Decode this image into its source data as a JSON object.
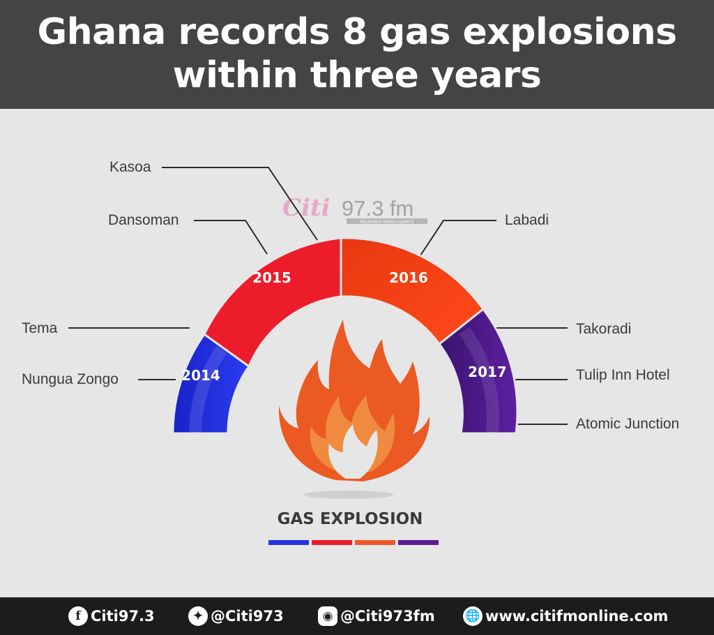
{
  "header": {
    "title_line1": "Ghana records 8 gas explosions",
    "title_line2": "within three years"
  },
  "watermark": {
    "brand": "Citi",
    "station": "97.3 fm",
    "tagline": "RELEVANT RADIO ALWAYS"
  },
  "segments": [
    {
      "year": "2014",
      "color": "#2633e0",
      "locations": [
        "Tema",
        "Nungua Zongo"
      ]
    },
    {
      "year": "2015",
      "color": "#ec1c2b",
      "locations": [
        "Kasoa",
        "Dansoman"
      ]
    },
    {
      "year": "2016",
      "color": "#fa4416",
      "locations": [
        "Labadi"
      ]
    },
    {
      "year": "2017",
      "color": "#4b1d87",
      "locations": [
        "Takoradi",
        "Tulip Inn Hotel",
        "Atomic Junction"
      ]
    }
  ],
  "labels": {
    "kasoa": "Kasoa",
    "dansoman": "Dansoman",
    "tema": "Tema",
    "nungua": "Nungua Zongo",
    "labadi": "Labadi",
    "takoradi": "Takoradi",
    "tulip": "Tulip Inn Hotel",
    "atomic": "Atomic Junction"
  },
  "center": {
    "icon": "flame-icon",
    "caption": "GAS EXPLOSION",
    "legend_colors": [
      "#2633e0",
      "#ec1c2b",
      "#f0582b",
      "#5a1d8f"
    ]
  },
  "footer": {
    "facebook": "Citi97.3",
    "twitter": "@Citi973",
    "instagram": "@Citi973fm",
    "website": "www.citifmonline.com"
  }
}
